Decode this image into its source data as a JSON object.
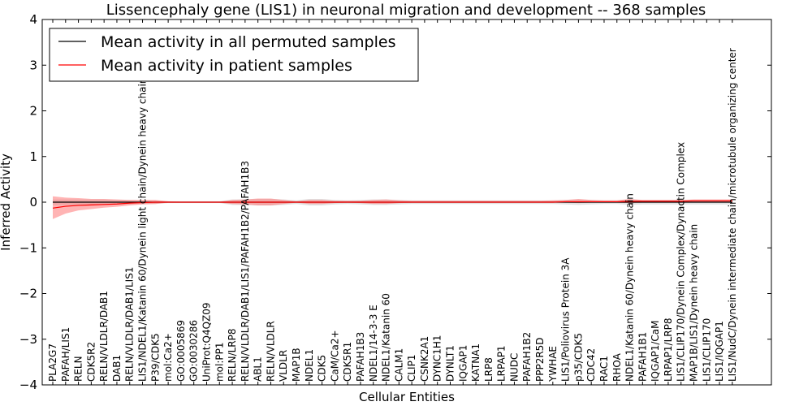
{
  "chart_data": {
    "type": "line",
    "title": "Lissencephaly gene (LIS1) in neuronal migration and development -- 368 samples",
    "xlabel": "Cellular Entities",
    "ylabel": "Inferred Activity",
    "ylim": [
      -4,
      4
    ],
    "yticks": [
      "4",
      "3",
      "2",
      "1",
      "0",
      "−1",
      "−2",
      "−3",
      "−4"
    ],
    "grid": false,
    "legend_position": "top-left",
    "categories": [
      "PLA2G7",
      "PAFAH/LIS1",
      "RELN",
      "CDK5R2",
      "RELN/VLDLR/DAB1",
      "DAB1",
      "RELN/VLDLR/DAB1/LIS1",
      "LIS1/NDEL1/Katanin 60/Dynein light chain/Dynein heavy chain",
      "P39/CDK5",
      "mol:Ca2+",
      "GO:0005869",
      "GO:0030286",
      "UniProt:Q4QZ09",
      "mol:PP1",
      "RELN/LRP8",
      "RELN/VLDLR/DAB1/LIS1/PAFAH1B2/PAFAH1B3",
      "ABL1",
      "RELN/VLDLR",
      "VLDLR",
      "MAP1B",
      "NDEL1",
      "CDK5",
      "CaM/Ca2+",
      "CDK5R1",
      "PAFAH1B3",
      "NDEL1/14-3-3 E",
      "NDEL1/Katanin 60",
      "CALM1",
      "CLIP1",
      "CSNK2A1",
      "DYNC1H1",
      "DYNLT1",
      "IQGAP1",
      "KATNA1",
      "LRP8",
      "LRPAP1",
      "NUDC",
      "PAFAH1B2",
      "PPP2R5D",
      "YWHAE",
      "LIS1/Poliovirus Protein 3A",
      "p35/CDK5",
      "CDC42",
      "RAC1",
      "RHOA",
      "NDEL1/Katanin 60/Dynein heavy chain",
      "PAFAH1B1",
      "IQGAP1/CaM",
      "LRPAP1/LRP8",
      "LIS1/CLIP170/Dynein Complex/Dynactin Complex",
      "MAP1B/LIS1/Dynein heavy chain",
      "LIS1/CLIP170",
      "LIS1/IQGAP1",
      "LIS1/NudC/Dynein intermediate chain/microtubule organizing center"
    ],
    "series": [
      {
        "name": "Mean activity in all permuted samples",
        "color": "#000000",
        "values": [
          0.0,
          0.0,
          0.0,
          0.0,
          0.0,
          0.0,
          0.0,
          0.0,
          0.0,
          0.0,
          0.0,
          0.0,
          0.0,
          0.0,
          0.0,
          0.0,
          0.0,
          0.0,
          0.0,
          0.0,
          0.0,
          0.0,
          0.0,
          0.0,
          0.0,
          0.0,
          0.0,
          0.0,
          0.0,
          0.0,
          0.0,
          0.0,
          0.0,
          0.0,
          0.0,
          0.0,
          0.0,
          0.0,
          0.0,
          0.0,
          0.0,
          0.0,
          0.0,
          0.0,
          0.0,
          0.0,
          0.0,
          0.0,
          0.0,
          0.0,
          0.0,
          0.0,
          0.0,
          0.0
        ],
        "lower": [
          -0.06,
          -0.06,
          -0.06,
          -0.06,
          -0.06,
          -0.05,
          -0.05,
          -0.04,
          -0.04,
          -0.02,
          -0.02,
          -0.02,
          -0.02,
          -0.02,
          -0.06,
          -0.06,
          -0.07,
          -0.07,
          -0.06,
          -0.04,
          -0.07,
          -0.07,
          -0.05,
          -0.04,
          -0.05,
          -0.06,
          -0.06,
          -0.05,
          -0.04,
          -0.04,
          -0.04,
          -0.04,
          -0.04,
          -0.04,
          -0.04,
          -0.04,
          -0.04,
          -0.04,
          -0.04,
          -0.04,
          -0.05,
          -0.06,
          -0.05,
          -0.04,
          -0.04,
          -0.06,
          -0.05,
          -0.05,
          -0.05,
          -0.05,
          -0.05,
          -0.05,
          -0.05,
          -0.05
        ],
        "upper": [
          0.06,
          0.06,
          0.06,
          0.06,
          0.06,
          0.05,
          0.05,
          0.04,
          0.04,
          0.02,
          0.02,
          0.02,
          0.02,
          0.02,
          0.06,
          0.06,
          0.07,
          0.07,
          0.06,
          0.04,
          0.07,
          0.07,
          0.05,
          0.04,
          0.05,
          0.06,
          0.06,
          0.05,
          0.04,
          0.04,
          0.04,
          0.04,
          0.04,
          0.04,
          0.04,
          0.04,
          0.04,
          0.04,
          0.04,
          0.04,
          0.05,
          0.06,
          0.05,
          0.04,
          0.04,
          0.06,
          0.05,
          0.05,
          0.05,
          0.05,
          0.05,
          0.05,
          0.05,
          0.05
        ]
      },
      {
        "name": "Mean activity in patient samples",
        "color": "#ff0000",
        "values": [
          -0.13,
          -0.09,
          -0.07,
          -0.06,
          -0.05,
          -0.04,
          -0.02,
          -0.01,
          0.0,
          0.0,
          0.0,
          0.0,
          0.0,
          0.0,
          0.0,
          0.0,
          0.0,
          0.0,
          0.0,
          0.0,
          0.0,
          0.0,
          0.0,
          0.0,
          0.0,
          0.0,
          0.0,
          0.0,
          0.0,
          0.0,
          0.0,
          0.0,
          0.0,
          0.0,
          0.0,
          0.0,
          0.0,
          0.0,
          0.0,
          0.0,
          0.01,
          0.01,
          0.01,
          0.01,
          0.01,
          0.02,
          0.02,
          0.02,
          0.02,
          0.02,
          0.03,
          0.03,
          0.03,
          0.03
        ],
        "lower": [
          -0.37,
          -0.25,
          -0.18,
          -0.15,
          -0.12,
          -0.1,
          -0.07,
          -0.05,
          -0.04,
          -0.01,
          -0.01,
          -0.01,
          -0.01,
          -0.01,
          -0.04,
          -0.05,
          -0.07,
          -0.07,
          -0.04,
          -0.01,
          -0.04,
          -0.04,
          -0.02,
          -0.01,
          -0.02,
          -0.04,
          -0.04,
          -0.02,
          -0.01,
          -0.01,
          -0.01,
          -0.01,
          -0.01,
          -0.01,
          -0.01,
          -0.01,
          -0.01,
          -0.01,
          -0.01,
          -0.01,
          -0.01,
          -0.02,
          -0.01,
          -0.01,
          -0.01,
          -0.02,
          -0.01,
          -0.01,
          -0.01,
          -0.01,
          -0.01,
          -0.01,
          -0.01,
          -0.01
        ],
        "upper": [
          0.13,
          0.1,
          0.09,
          0.07,
          0.07,
          0.06,
          0.05,
          0.05,
          0.05,
          0.02,
          0.01,
          0.01,
          0.01,
          0.01,
          0.05,
          0.06,
          0.08,
          0.08,
          0.05,
          0.02,
          0.05,
          0.05,
          0.03,
          0.03,
          0.03,
          0.05,
          0.06,
          0.04,
          0.03,
          0.03,
          0.03,
          0.03,
          0.03,
          0.03,
          0.03,
          0.03,
          0.03,
          0.03,
          0.03,
          0.04,
          0.05,
          0.07,
          0.05,
          0.04,
          0.04,
          0.07,
          0.05,
          0.05,
          0.05,
          0.05,
          0.06,
          0.06,
          0.06,
          0.06
        ]
      }
    ]
  },
  "colors": {
    "permuted_band": "#c8c8c8",
    "patient_band": "#ff7777"
  }
}
